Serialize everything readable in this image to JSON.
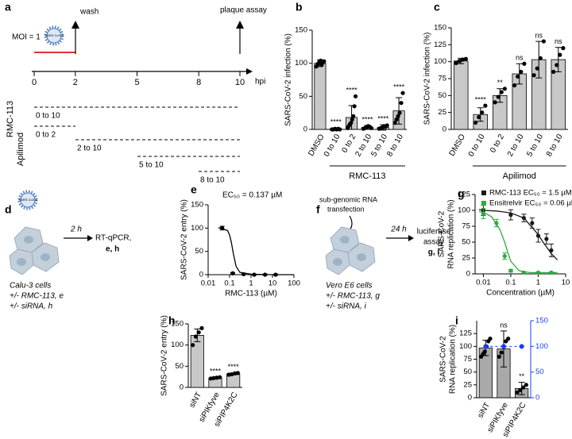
{
  "panel_labels": [
    "a",
    "b",
    "c",
    "d",
    "e",
    "f",
    "g",
    "h",
    "i"
  ],
  "timeline": {
    "moi": "MOI = 1",
    "virus": "SARS CoV-2",
    "wash": "wash",
    "plaque": "plaque assay",
    "ticks": [
      0,
      2,
      5,
      8,
      10
    ],
    "unit": "hpi",
    "groups": [
      "RMC-113",
      "Apilimod"
    ],
    "rows": [
      "0 to 10",
      "0 to 2",
      "2 to 10",
      "5 to 10",
      "8 to 10"
    ]
  },
  "calu": {
    "virus": "SARS CoV-2",
    "time": "2 h",
    "readout": [
      "RT-qPCR,",
      "e, h"
    ],
    "cells": "Calu-3 cells",
    "conditions": [
      "+/- RMC-113, e",
      "+/- siRNA, h"
    ]
  },
  "vero": {
    "pre": [
      "sub-genomic RNA",
      "transfection"
    ],
    "time": "24 h",
    "readout": [
      "luciferase",
      "assay",
      "g, i"
    ],
    "cells": "Vero E6 cells",
    "conditions": [
      "+/- RMC-113, g",
      "+/- siRNA, i"
    ]
  },
  "chart_data": [
    {
      "type": "bar",
      "ylabel": [
        "SARS-CoV-2 infection (%)"
      ],
      "group_label": "RMC-113",
      "categories": [
        "DMSO",
        "0 to 10",
        "0 to 2",
        "2 to 10",
        "5 to 10",
        "8 to 10"
      ],
      "values": [
        100,
        1,
        18,
        3,
        3,
        28
      ],
      "errors": [
        5,
        1,
        18,
        3,
        4,
        20
      ],
      "points": [
        [
          95,
          97,
          100,
          102,
          104,
          98,
          101,
          103
        ],
        [
          0,
          0,
          1,
          0,
          1,
          0
        ],
        [
          2,
          5,
          8,
          10,
          15,
          20,
          35,
          50
        ],
        [
          1,
          2,
          3,
          5,
          4,
          2
        ],
        [
          1,
          2,
          3,
          5,
          4,
          6
        ],
        [
          10,
          15,
          20,
          25,
          40,
          55
        ]
      ],
      "significance": [
        null,
        "****",
        "****",
        "****",
        "****",
        "****"
      ],
      "color": "#c8c8c8",
      "point_color": "#000000",
      "ylim": [
        0,
        150
      ],
      "yticks": [
        0,
        50,
        100,
        150
      ]
    },
    {
      "type": "bar",
      "ylabel": [
        "SARS-CoV-2 infection (%)"
      ],
      "group_label": "Apilimod",
      "categories": [
        "DMSO",
        "0 to 10",
        "0 to 2",
        "2 to 10",
        "5 to 10",
        "8 to 10"
      ],
      "values": [
        101,
        22,
        50,
        82,
        103,
        103
      ],
      "errors": [
        4,
        10,
        10,
        15,
        27,
        18
      ],
      "points": [
        [
          98,
          101,
          103,
          104
        ],
        [
          10,
          18,
          25,
          35
        ],
        [
          40,
          48,
          55,
          60
        ],
        [
          65,
          78,
          85,
          97
        ],
        [
          80,
          90,
          105,
          130
        ],
        [
          85,
          95,
          110,
          120
        ]
      ],
      "significance": [
        null,
        "****",
        "**",
        "ns",
        "ns",
        "ns"
      ],
      "color": "#c8c8c8",
      "point_color": "#000000",
      "ylim": [
        0,
        150
      ],
      "yticks": [
        0,
        25,
        50,
        75,
        100,
        125,
        150
      ]
    },
    {
      "type": "dose-response",
      "xscale": "log",
      "ylabel": [
        "SARS-CoV-2 entry (%)"
      ],
      "xlabel": "RMC-113 (µM)",
      "annotation": "EC₅₀ = 0.137 µM",
      "xlim": [
        0.01,
        100
      ],
      "xticks": [
        0.01,
        0.1,
        1,
        10,
        100
      ],
      "ylim": [
        0,
        150
      ],
      "yticks": [
        0,
        50,
        100,
        150
      ],
      "series": [
        {
          "color": "#000000",
          "x": [
            0.045,
            0.14,
            0.45,
            1.4,
            4.5,
            14
          ],
          "values": [
            100,
            3,
            1,
            0,
            0,
            0
          ],
          "errors": [
            4,
            1,
            1,
            1,
            1,
            1
          ],
          "curve_x": [
            0.03,
            0.08,
            0.1,
            0.12,
            0.15,
            0.2,
            0.3,
            1,
            10,
            100
          ],
          "curve_values": [
            101,
            95,
            85,
            70,
            45,
            18,
            5,
            1,
            0,
            0
          ]
        }
      ]
    },
    {
      "type": "dose-response",
      "xscale": "log",
      "ylabel": [
        "SARS-CoV-2",
        "RNA replication (%)"
      ],
      "xlabel": "Concentration (µM)",
      "legend": "upper left",
      "xlim": [
        0.005,
        10
      ],
      "xticks": [
        0.01,
        0.1,
        1,
        10
      ],
      "ylim": [
        0,
        125
      ],
      "yticks": [
        0,
        25,
        50,
        75,
        100,
        125
      ],
      "series": [
        {
          "name": "RMC-113 EC₅₀ = 1.5 µM",
          "color": "#1a1a1a",
          "x": [
            0.01,
            0.1,
            0.3,
            0.6,
            1,
            2,
            3
          ],
          "values": [
            100,
            93,
            88,
            80,
            60,
            55,
            37
          ],
          "errors": [
            8,
            8,
            6,
            8,
            10,
            8,
            10
          ],
          "curve_x": [
            0.007,
            0.01,
            0.03,
            0.1,
            0.3,
            1,
            1.5,
            3,
            5
          ],
          "curve_values": [
            101,
            100,
            99,
            96,
            88,
            62,
            50,
            32,
            22
          ]
        },
        {
          "name": "Ensitrelvir EC₅₀ = 0.06 µM",
          "color": "#2eaa3c",
          "x": [
            0.01,
            0.03,
            0.06,
            0.1,
            0.3,
            1,
            3
          ],
          "values": [
            95,
            80,
            28,
            5,
            2,
            2,
            2
          ],
          "errors": [
            8,
            6,
            5,
            2,
            1,
            1,
            1
          ],
          "curve_x": [
            0.007,
            0.01,
            0.02,
            0.04,
            0.06,
            0.08,
            0.1,
            0.2,
            0.5,
            5
          ],
          "curve_values": [
            98,
            97,
            90,
            70,
            50,
            32,
            20,
            5,
            2,
            2
          ]
        }
      ]
    },
    {
      "type": "bar",
      "ylabel": [
        "SARS-CoV-2 entry (%)"
      ],
      "categories": [
        "siNT",
        "siPIKfyve",
        "siPIP4K2C"
      ],
      "values": [
        123,
        22,
        32
      ],
      "errors": [
        15,
        2,
        2
      ],
      "points": [
        [
          100,
          120,
          130,
          140
        ],
        [
          21,
          22,
          23,
          24
        ],
        [
          30,
          31,
          33,
          34
        ]
      ],
      "significance": [
        null,
        "****",
        "****"
      ],
      "color": "#c8c8c8",
      "point_color": "#000000",
      "ylim": [
        0,
        150
      ],
      "yticks": [
        0,
        50,
        100,
        150
      ]
    },
    {
      "type": "bar",
      "ylabel": [
        "SARS-CoV-2",
        "RNA replication (%)"
      ],
      "categories": [
        "siNT",
        "siPIKfyve",
        "siPIP4K2C"
      ],
      "values": [
        97,
        95,
        18
      ],
      "errors": [
        15,
        35,
        12
      ],
      "points": [
        [
          80,
          85,
          90,
          100,
          110,
          115
        ],
        [
          80,
          88,
          100,
          110,
          115
        ],
        [
          10,
          15,
          20,
          25
        ]
      ],
      "significance": [
        null,
        "ns",
        "**"
      ],
      "color": "#a9a9a9",
      "point_color": "#000000",
      "ylim": [
        0,
        150
      ],
      "yticks": [
        0,
        25,
        50,
        75,
        100,
        125
      ],
      "y2lim": [
        0,
        150
      ],
      "y2ticks": [
        0,
        50,
        100,
        150
      ],
      "y2_values": [
        100,
        100,
        100
      ],
      "y2_color": "#1a3cff"
    }
  ]
}
